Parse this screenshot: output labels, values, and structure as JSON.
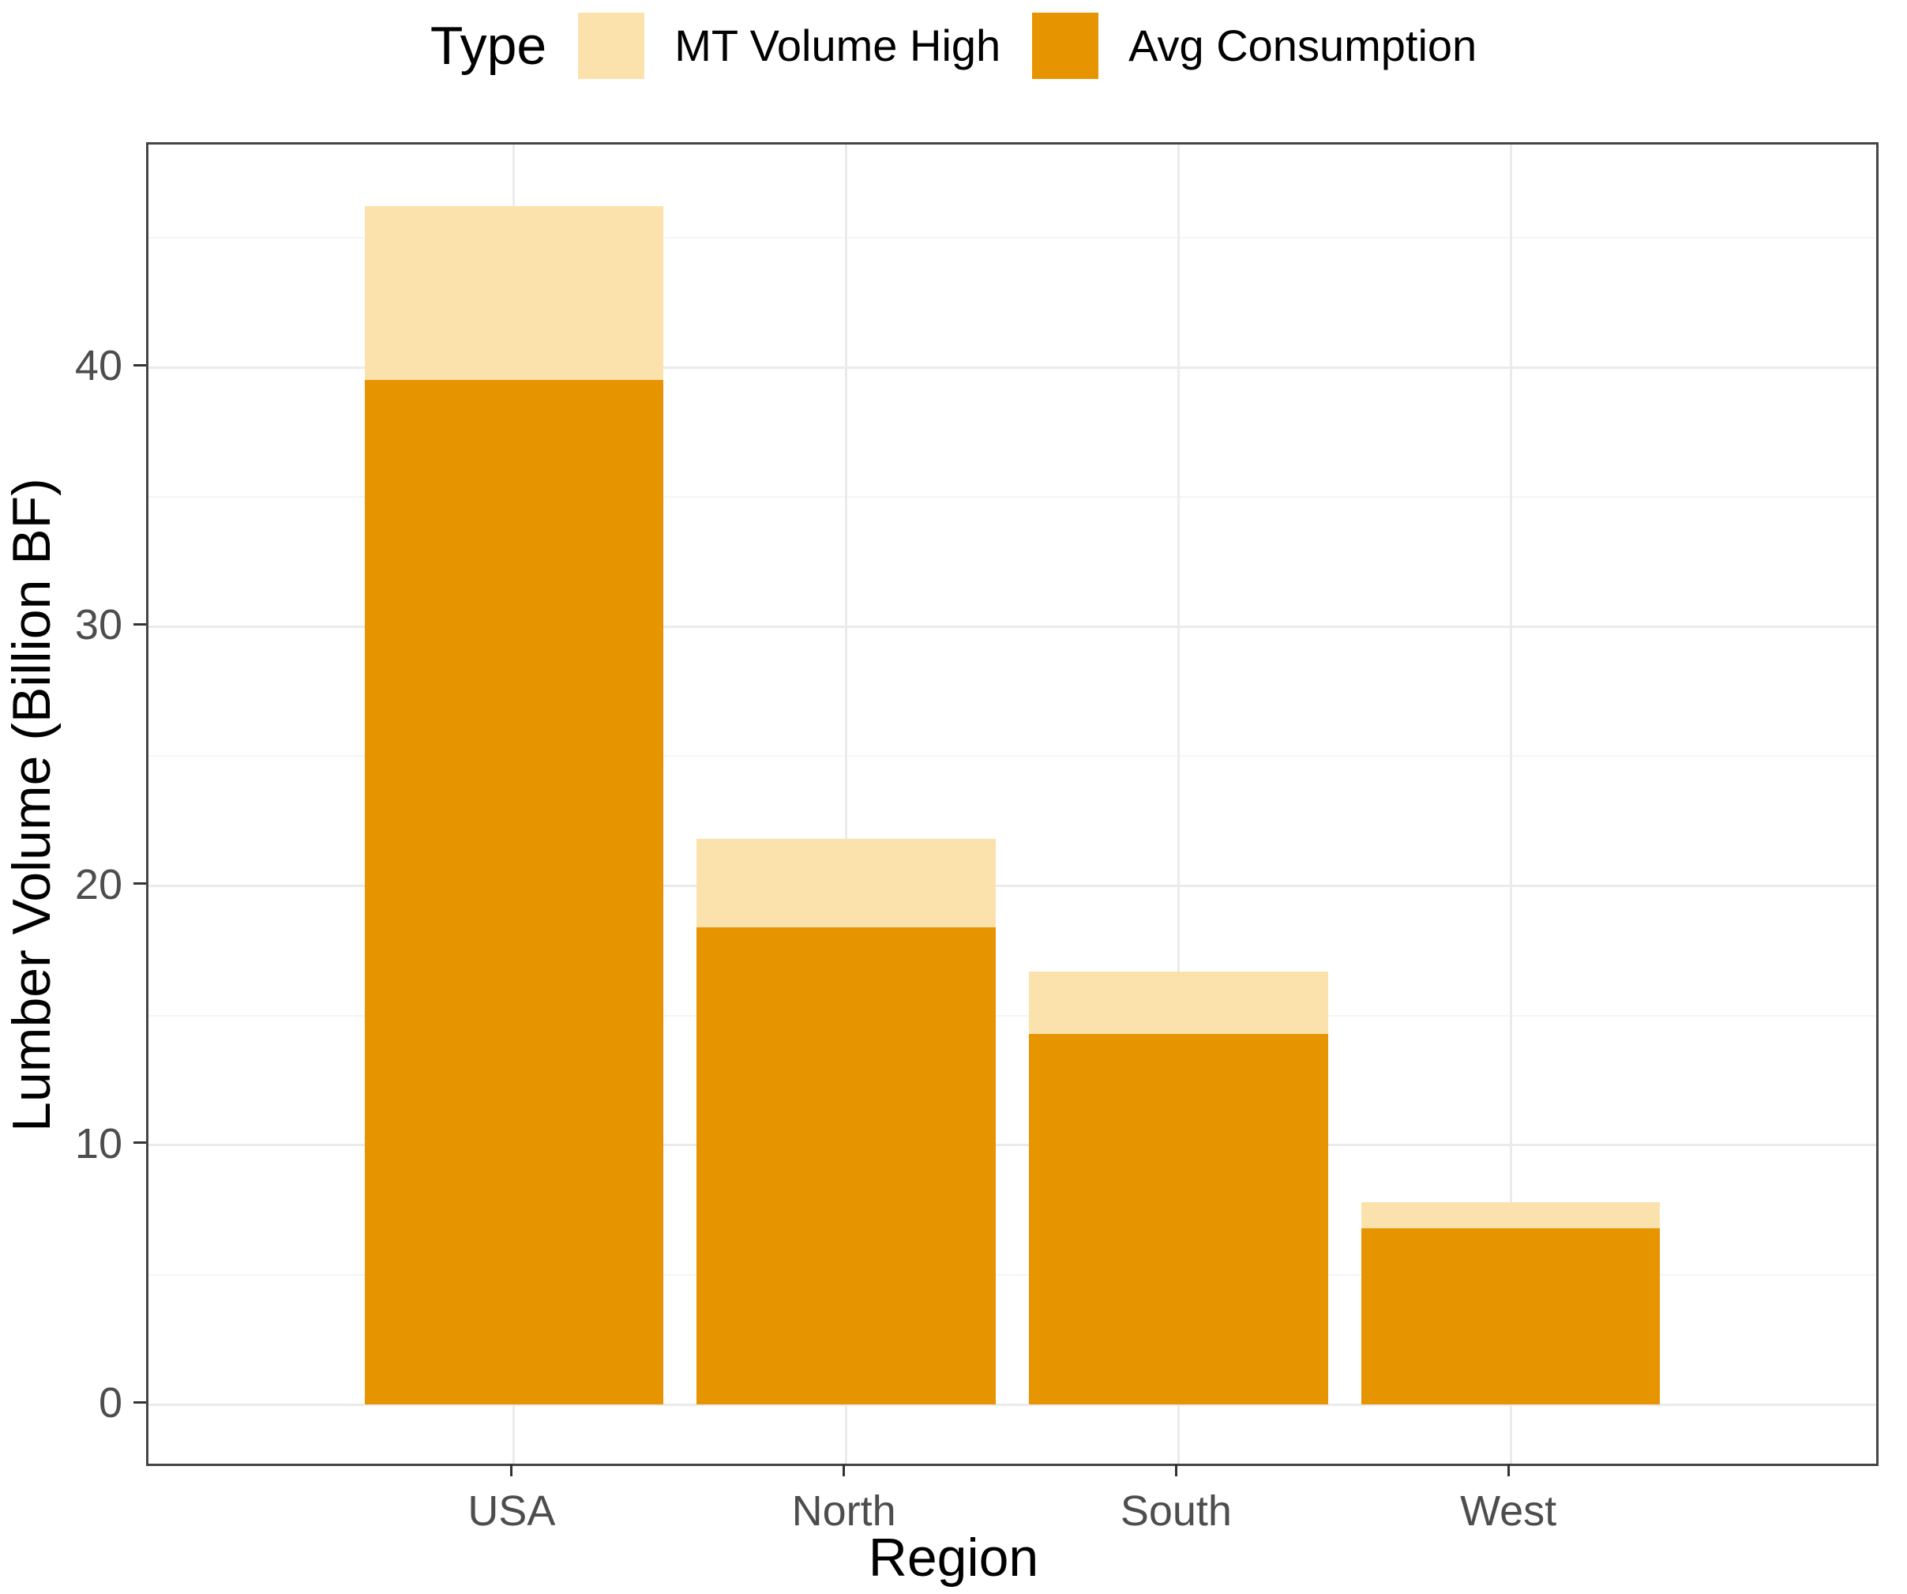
{
  "chart_data": {
    "type": "bar",
    "mode": "overlay",
    "legend_title": "Type",
    "legend_position": "top",
    "categories": [
      "USA",
      "North",
      "South",
      "West"
    ],
    "series": [
      {
        "name": "MT Volume High",
        "color": "#FBE2AD",
        "values": [
          46.2,
          21.8,
          16.7,
          7.8
        ]
      },
      {
        "name": "Avg Consumption",
        "color": "#E69500",
        "values": [
          39.5,
          18.4,
          14.3,
          6.8
        ]
      }
    ],
    "xlabel": "Region",
    "ylabel": "Lumber Volume (Billion BF)",
    "ylim": [
      0,
      48.6
    ],
    "y_ticks": [
      0,
      10,
      20,
      30,
      40
    ],
    "y_minor_ticks": [
      5,
      15,
      25,
      35,
      45
    ],
    "grid": "on"
  },
  "colors": {
    "bar_light": "#FBE2AD",
    "bar_orange": "#E69500",
    "grid_major": "#ebebeb",
    "grid_minor": "#f5f5f5",
    "axis_text": "#4d4d4d",
    "panel_border": "#454545",
    "background": "#ffffff"
  }
}
